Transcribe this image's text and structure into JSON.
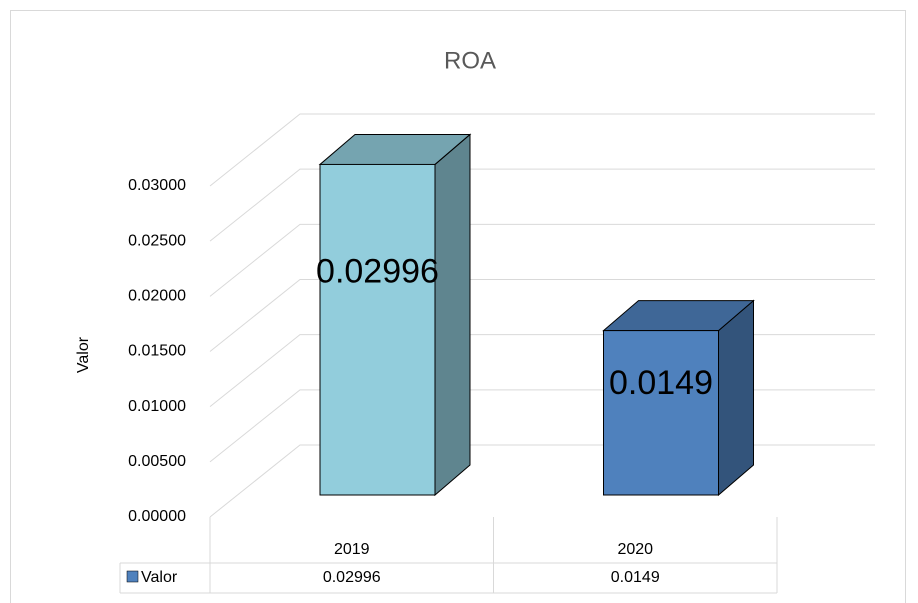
{
  "chart_data": {
    "type": "bar3d",
    "title": "ROA",
    "y_axis_label": "Valor",
    "categories": [
      "2019",
      "2020"
    ],
    "series": [
      {
        "name": "Valor",
        "color": "#4f81bd",
        "values": [
          0.02996,
          0.0149
        ]
      }
    ],
    "colors": [
      "#92cddc",
      "#4f81bd"
    ],
    "ylim": [
      0,
      0.03
    ],
    "yticks": [
      {
        "value": 0,
        "label": "0.00000"
      },
      {
        "value": 0.005,
        "label": "0.00500"
      },
      {
        "value": 0.01,
        "label": "0.01000"
      },
      {
        "value": 0.015,
        "label": "0.01500"
      },
      {
        "value": 0.02,
        "label": "0.02000"
      },
      {
        "value": 0.025,
        "label": "0.02500"
      },
      {
        "value": 0.03,
        "label": "0.03000"
      }
    ],
    "grid": true,
    "data_table": true
  }
}
